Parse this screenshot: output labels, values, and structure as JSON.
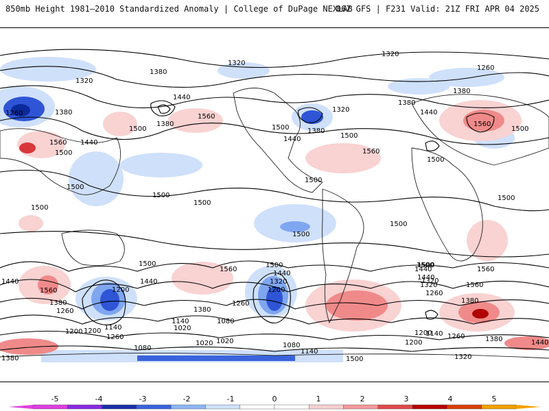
{
  "header": {
    "title_left": "850mb Height 1981–2010 Standardized Anomaly | College of DuPage NEXLAB",
    "title_right": "06Z GFS | F231 Valid: 21Z FRI APR 04 2025"
  },
  "colors": {
    "pos1": "#f9d2d2",
    "pos2": "#f08a8a",
    "pos3": "#d8383a",
    "pos4": "#b00000",
    "neg1": "#cfe0fb",
    "neg2": "#7fa6f0",
    "neg3": "#2f55d6",
    "neg4": "#0b2a9c"
  },
  "contour_labels": [
    {
      "text": "1320",
      "key": "a"
    },
    {
      "text": "1380",
      "key": "b"
    },
    {
      "text": "1320",
      "key": "c"
    },
    {
      "text": "1320",
      "key": "d"
    },
    {
      "text": "1260",
      "key": "e"
    },
    {
      "text": "1380",
      "key": "f"
    },
    {
      "text": "1440",
      "key": "g"
    },
    {
      "text": "1380",
      "key": "h"
    },
    {
      "text": "1500",
      "key": "i"
    },
    {
      "text": "1560",
      "key": "j"
    },
    {
      "text": "1260",
      "key": "k"
    },
    {
      "text": "1380",
      "key": "l"
    },
    {
      "text": "1560",
      "key": "m"
    },
    {
      "text": "1500",
      "key": "n"
    },
    {
      "text": "1440",
      "key": "o"
    },
    {
      "text": "1380",
      "key": "p"
    },
    {
      "text": "1500",
      "key": "q"
    },
    {
      "text": "1320",
      "key": "r"
    },
    {
      "text": "1500",
      "key": "s"
    },
    {
      "text": "1560",
      "key": "t"
    },
    {
      "text": "1440",
      "key": "u"
    },
    {
      "text": "1500",
      "key": "v"
    },
    {
      "text": "1500",
      "key": "w"
    },
    {
      "text": "1500",
      "key": "x"
    },
    {
      "text": "1500",
      "key": "y"
    },
    {
      "text": "1500",
      "key": "z"
    },
    {
      "text": "1500",
      "key": "aa"
    },
    {
      "text": "1500",
      "key": "ab"
    },
    {
      "text": "1500",
      "key": "ac"
    },
    {
      "text": "1500",
      "key": "ad"
    },
    {
      "text": "1500",
      "key": "ae"
    },
    {
      "text": "1500",
      "key": "af"
    },
    {
      "text": "1560",
      "key": "ag"
    },
    {
      "text": "1560",
      "key": "ah"
    },
    {
      "text": "1500",
      "key": "ai"
    },
    {
      "text": "1440",
      "key": "aj"
    },
    {
      "text": "1320",
      "key": "ak"
    },
    {
      "text": "1200",
      "key": "al"
    },
    {
      "text": "1440",
      "key": "am"
    },
    {
      "text": "1380",
      "key": "an"
    },
    {
      "text": "1260",
      "key": "ao"
    },
    {
      "text": "1140",
      "key": "ap"
    },
    {
      "text": "1080",
      "key": "aq"
    },
    {
      "text": "1020",
      "key": "ar"
    },
    {
      "text": "1260",
      "key": "as"
    },
    {
      "text": "1200",
      "key": "at"
    },
    {
      "text": "1140",
      "key": "au"
    },
    {
      "text": "1080",
      "key": "av"
    },
    {
      "text": "1020",
      "key": "aw"
    },
    {
      "text": "1020",
      "key": "ax"
    },
    {
      "text": "1500",
      "key": "ay"
    },
    {
      "text": "1440",
      "key": "az"
    },
    {
      "text": "1320",
      "key": "ba"
    },
    {
      "text": "1200",
      "key": "bb"
    },
    {
      "text": "1080",
      "key": "bc"
    },
    {
      "text": "1140",
      "key": "bd"
    },
    {
      "text": "1200",
      "key": "be"
    },
    {
      "text": "1500",
      "key": "bf"
    },
    {
      "text": "1440",
      "key": "bg"
    },
    {
      "text": "1320",
      "key": "bh"
    },
    {
      "text": "1260",
      "key": "bi"
    },
    {
      "text": "1560",
      "key": "bj"
    },
    {
      "text": "1380",
      "key": "bk"
    },
    {
      "text": "1200",
      "key": "bl"
    },
    {
      "text": "1140",
      "key": "bm"
    },
    {
      "text": "1260",
      "key": "bn"
    },
    {
      "text": "1320",
      "key": "bo"
    },
    {
      "text": "1380",
      "key": "bp"
    },
    {
      "text": "1440",
      "key": "bq"
    },
    {
      "text": "1440",
      "key": "br"
    },
    {
      "text": "1560",
      "key": "bs"
    },
    {
      "text": "1380",
      "key": "bt"
    },
    {
      "text": "1260",
      "key": "bu"
    },
    {
      "text": "1200",
      "key": "bv"
    },
    {
      "text": "1380",
      "key": "bw"
    },
    {
      "text": "1560",
      "key": "bx"
    },
    {
      "text": "1500",
      "key": "by"
    },
    {
      "text": "1440",
      "key": "bz"
    },
    {
      "text": "1380",
      "key": "ca"
    }
  ],
  "colorbar": {
    "ticks": [
      "-5",
      "-4",
      "-3",
      "-2",
      "-1",
      "0",
      "1",
      "2",
      "3",
      "4",
      "5"
    ],
    "segments": [
      "#e040e0",
      "#8a2be2",
      "#1a2fa8",
      "#3a63dc",
      "#8fb5f2",
      "#cfe2fb",
      "#ffffff",
      "#ffffff",
      "#f9d0d0",
      "#f29a9a",
      "#e04a4a",
      "#b80000",
      "#d84000",
      "#f4a000"
    ]
  }
}
